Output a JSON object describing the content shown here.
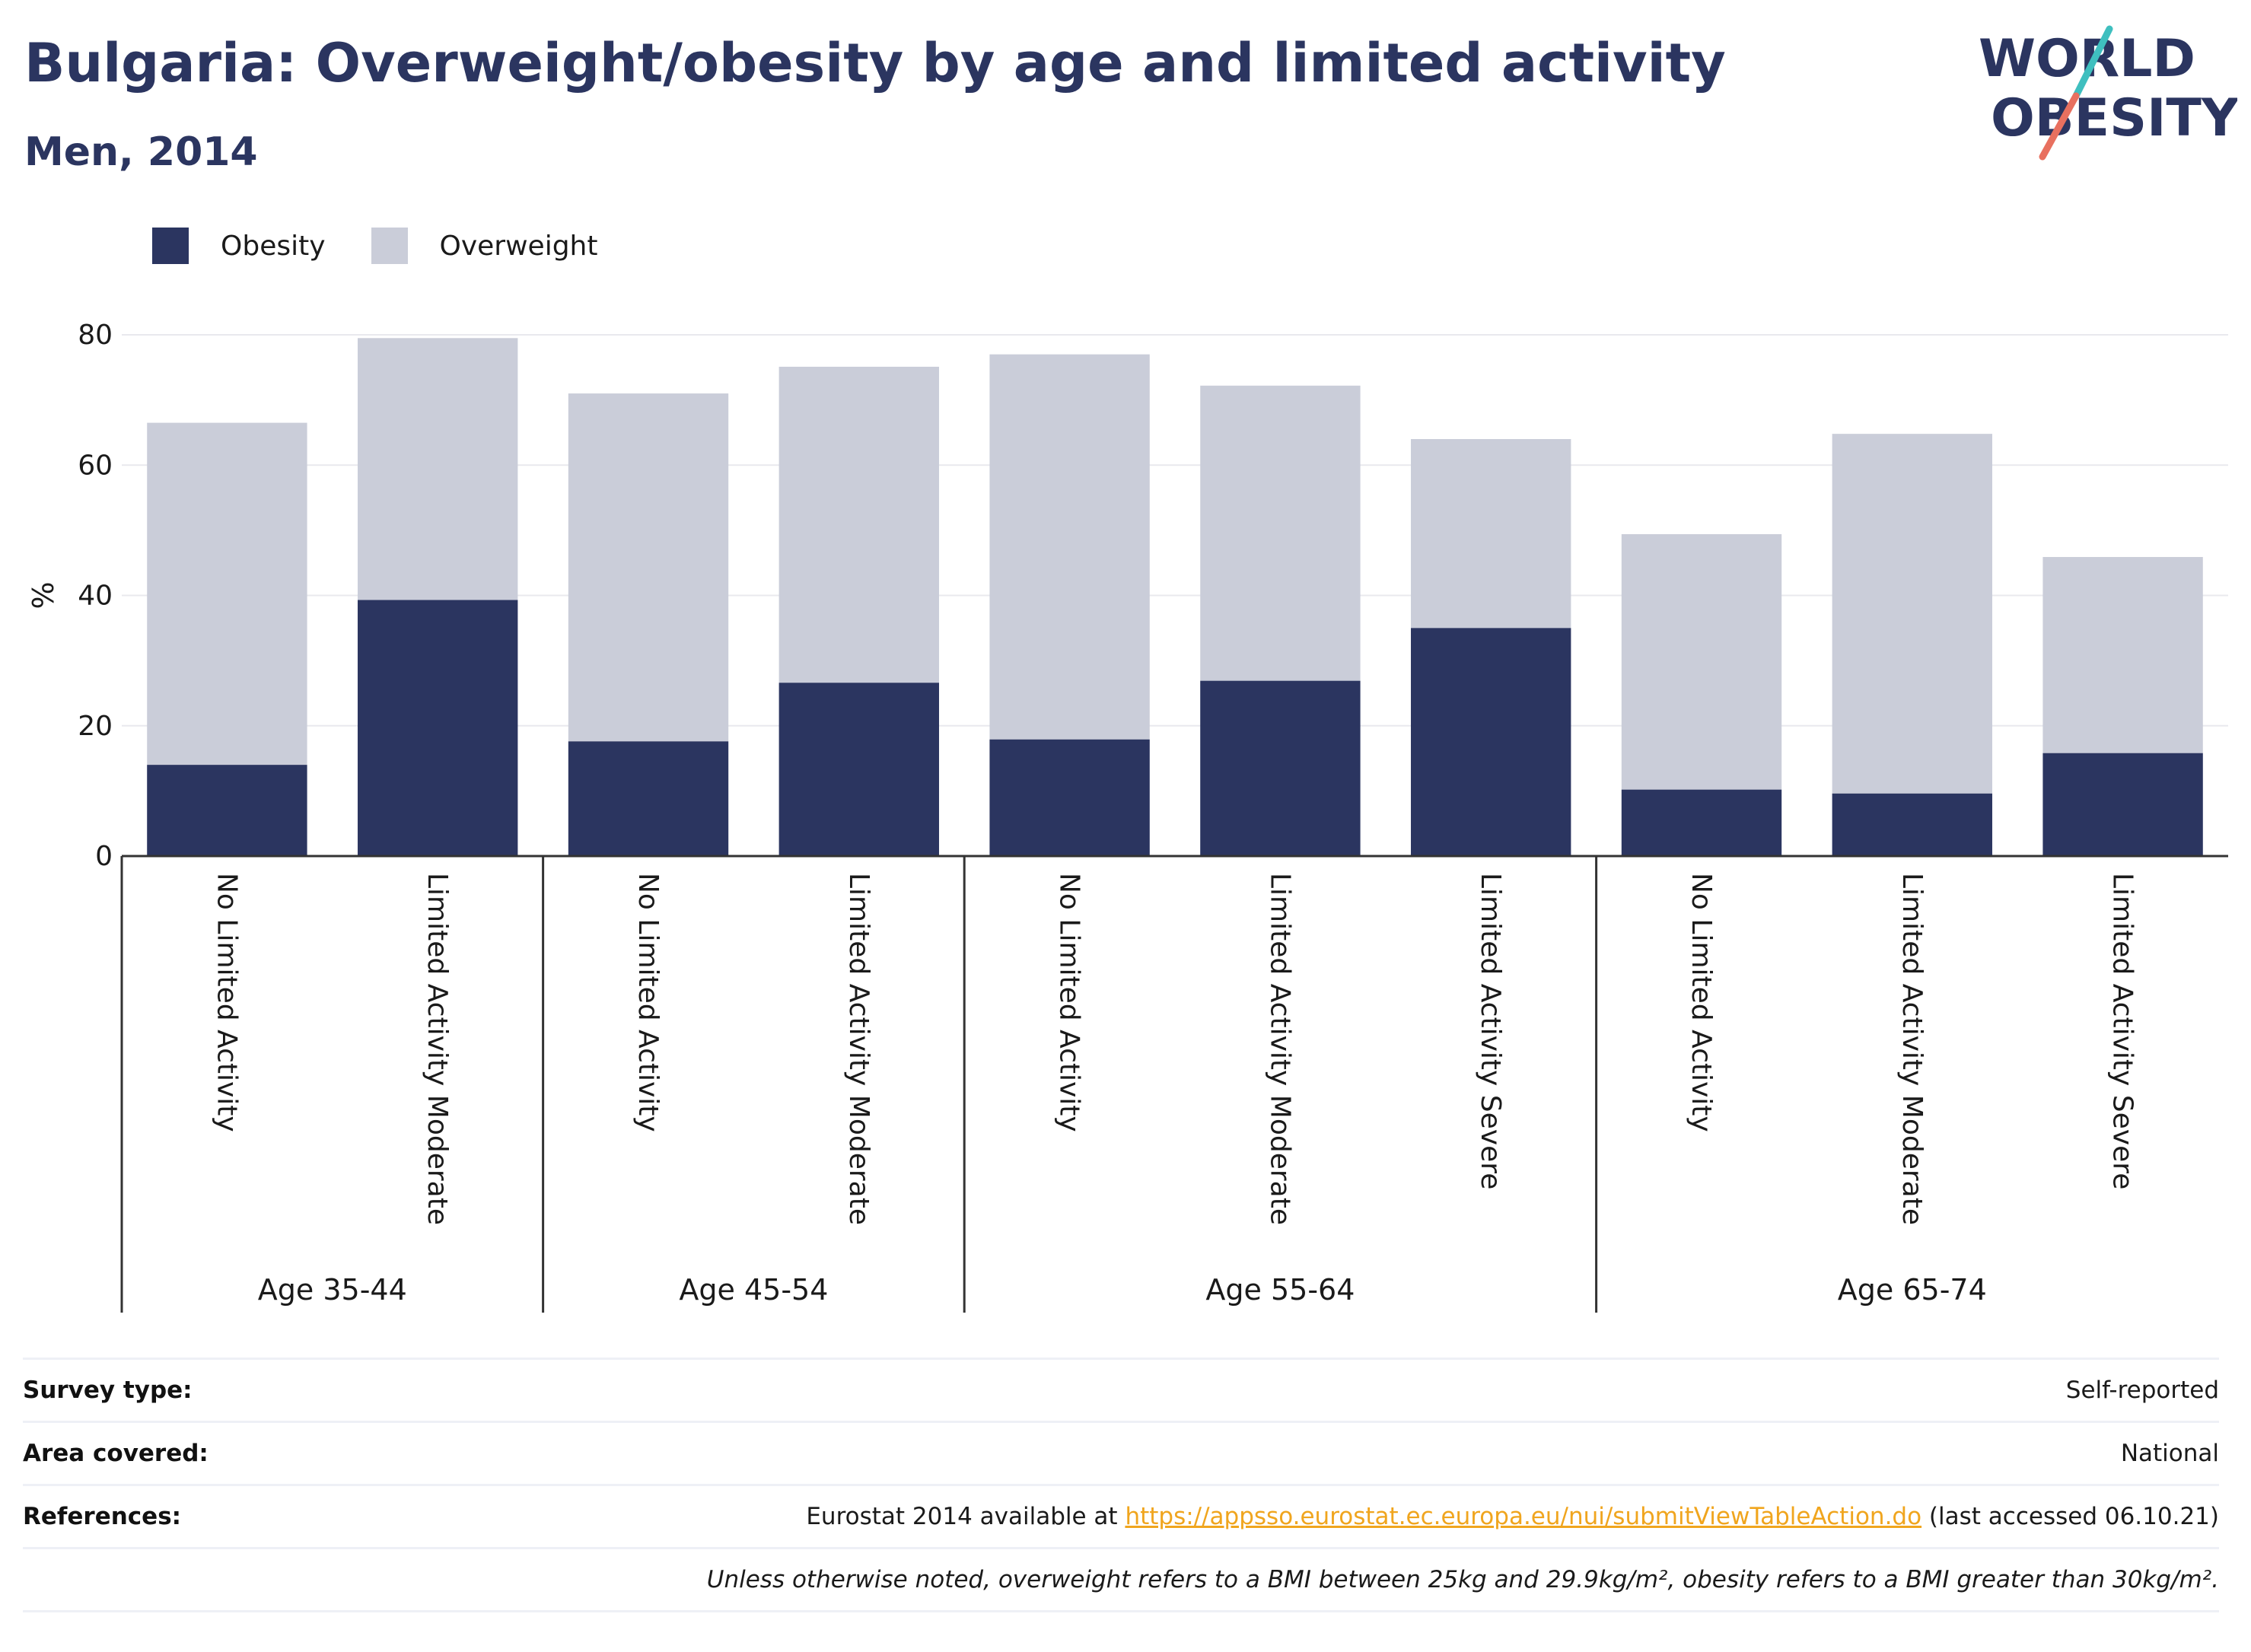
{
  "header": {
    "title": "Bulgaria: Overweight/obesity by age and limited activity",
    "subtitle": "Men, 2014"
  },
  "logo": {
    "line1": "WORLD",
    "line2": "OBESITY"
  },
  "legend": [
    {
      "label": "Obesity",
      "color": "#2b3560"
    },
    {
      "label": "Overweight",
      "color": "#cacdd9"
    }
  ],
  "chart_data": {
    "type": "bar",
    "stacked": true,
    "ylabel": "%",
    "xlabel": "",
    "ylim": [
      0,
      80
    ],
    "yticks": [
      0,
      20,
      40,
      60,
      80
    ],
    "grid": true,
    "legend_position": "top-left",
    "groups": [
      {
        "label": "Age 35-44",
        "categories": [
          "No Limited Activity",
          "Limited Activity Moderate"
        ]
      },
      {
        "label": "Age 45-54",
        "categories": [
          "No Limited Activity",
          "Limited Activity Moderate"
        ]
      },
      {
        "label": "Age 55-64",
        "categories": [
          "No Limited Activity",
          "Limited Activity Moderate",
          "Limited Activity Severe"
        ]
      },
      {
        "label": "Age 65-74",
        "categories": [
          "No Limited Activity",
          "Limited Activity Moderate",
          "Limited Activity Severe"
        ]
      }
    ],
    "series": [
      {
        "name": "Obesity",
        "color": "#2b3560",
        "values": [
          14.0,
          39.3,
          17.6,
          26.6,
          17.9,
          26.9,
          35.0,
          10.2,
          9.6,
          15.8
        ]
      },
      {
        "name": "Overweight",
        "color": "#cacdd9",
        "values": [
          52.5,
          40.2,
          53.4,
          48.5,
          59.1,
          45.3,
          29.0,
          39.2,
          55.2,
          30.1
        ]
      }
    ]
  },
  "info": {
    "survey_label": "Survey type:",
    "survey_value": "Self-reported",
    "area_label": "Area covered:",
    "area_value": "National",
    "ref_label": "References:",
    "ref_prefix": "Eurostat 2014 available at ",
    "ref_link": "https://appsso.eurostat.ec.europa.eu/nui/submitViewTableAction.do",
    "ref_suffix": " (last accessed 06.10.21)",
    "note": "Unless otherwise noted, overweight refers to a BMI between 25kg and 29.9kg/m², obesity refers to a BMI greater than 30kg/m²."
  }
}
